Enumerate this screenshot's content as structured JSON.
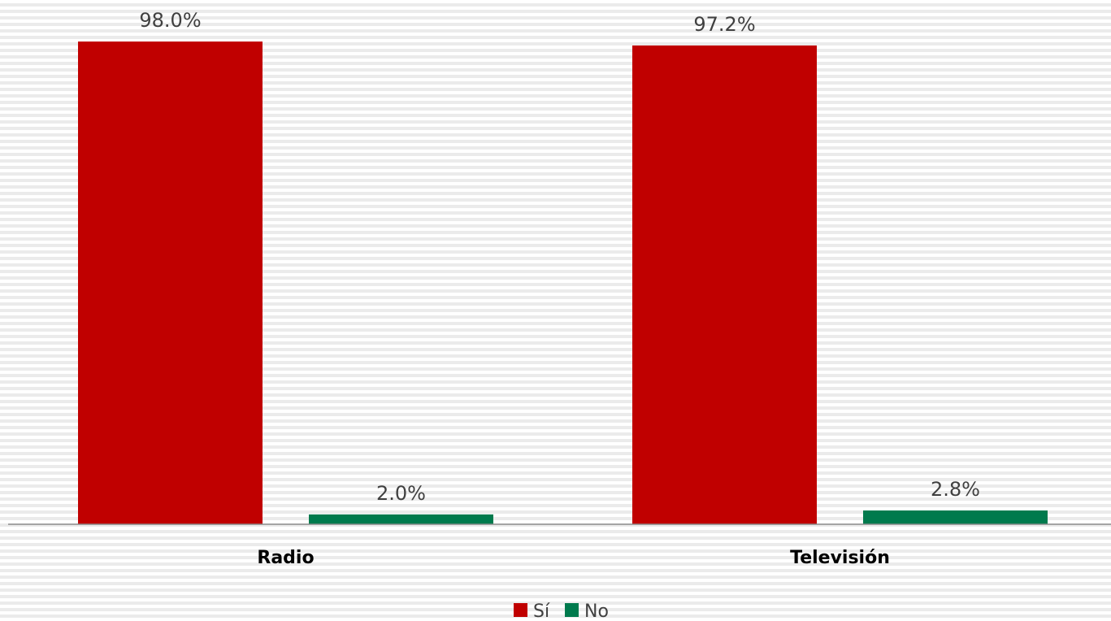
{
  "chart_data": {
    "type": "bar",
    "categories": [
      "Radio",
      "Televisión"
    ],
    "series": [
      {
        "name": "Sí",
        "values": [
          98.0,
          97.2
        ],
        "labels": [
          "98.0%",
          "97.2%"
        ],
        "color": "#c00000"
      },
      {
        "name": "No",
        "values": [
          2.0,
          2.8
        ],
        "labels": [
          "2.0%",
          "2.8%"
        ],
        "color": "#007a4d"
      }
    ],
    "unit": "%",
    "ylim": [
      0,
      100
    ],
    "grid": false,
    "legend": "bottom"
  }
}
